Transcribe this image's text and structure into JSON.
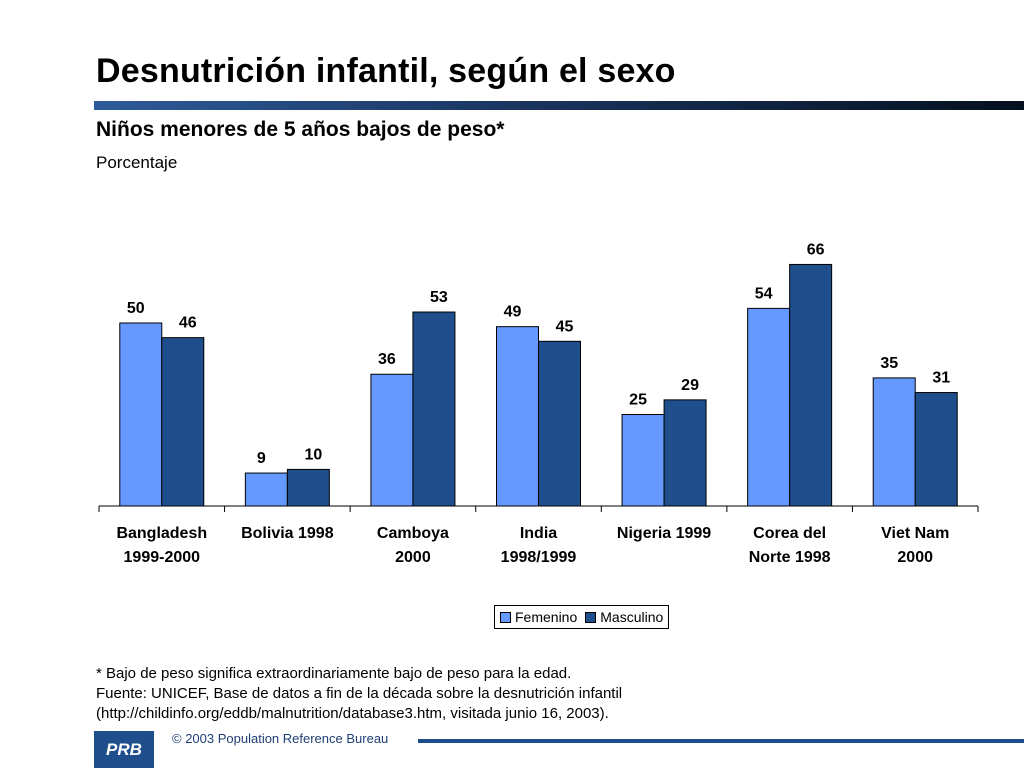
{
  "slide": {
    "title": "Desnutrición infantil, según el sexo",
    "subtitle": "Niños menores de 5 años bajos de peso*",
    "unit_label": "Porcentaje"
  },
  "chart_data": {
    "type": "bar",
    "categories": [
      [
        "Bangladesh",
        "1999-2000"
      ],
      [
        "Bolivia 1998"
      ],
      [
        "Camboya",
        "2000"
      ],
      [
        "India",
        "1998/1999"
      ],
      [
        "Nigeria 1999"
      ],
      [
        "Corea del",
        "Norte 1998"
      ],
      [
        "Viet Nam",
        "2000"
      ]
    ],
    "series": [
      {
        "name": "Femenino",
        "color": "#6699ff",
        "values": [
          50,
          9,
          36,
          49,
          25,
          54,
          35
        ]
      },
      {
        "name": "Masculino",
        "color": "#1f4e8c",
        "values": [
          46,
          10,
          53,
          45,
          29,
          66,
          31
        ]
      }
    ],
    "ylim": [
      0,
      70
    ],
    "grid": false,
    "legend_position": "bottom-center",
    "data_labels": true
  },
  "notes": [
    "* Bajo de peso significa extraordinariamente bajo de peso para la edad.",
    "Fuente: UNICEF, Base de datos a fin de la década sobre la desnutrición infantil",
    "(http://childinfo.org/eddb/malnutrition/database3.htm, visitada junio 16, 2003)."
  ],
  "footer": {
    "logo_text": "PRB",
    "copyright": "© 2003 Population Reference Bureau"
  }
}
